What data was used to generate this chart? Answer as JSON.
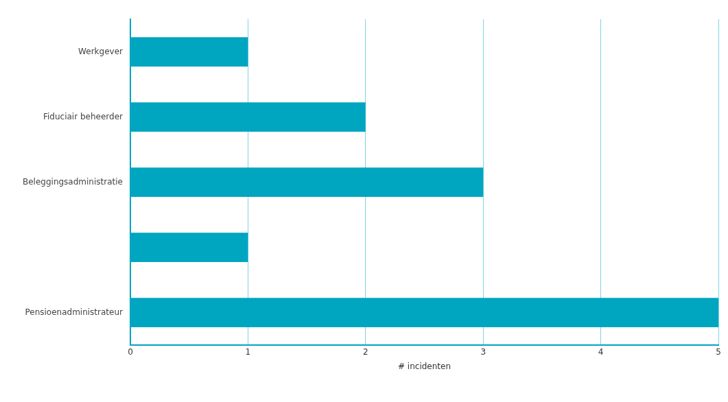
{
  "chart_data": {
    "type": "bar",
    "orientation": "horizontal",
    "xlabel": "# incidenten",
    "categories": [
      "Werkgever",
      "Fiduciair beheerder",
      "Beleggingsadministratie",
      null,
      "Pensioenadministrateur"
    ],
    "values": [
      1,
      2,
      3,
      1,
      5
    ],
    "color": "#00a5c0",
    "xlim": [
      0,
      5
    ],
    "xticks": [
      0,
      1,
      2,
      3,
      4,
      5
    ],
    "grid": "x",
    "legend": false
  }
}
